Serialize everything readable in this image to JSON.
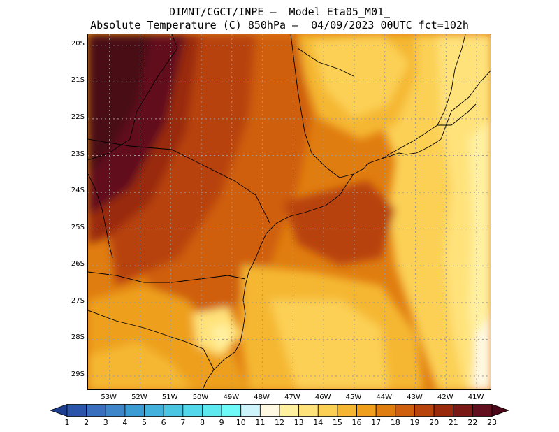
{
  "header": {
    "line1": "DIMNT/CGCT/INPE –  Model Eta05_M01_",
    "line2": "Absolute Temperature (C) 850hPa –  04/09/2023 00UTC fct=102h"
  },
  "map": {
    "lat_labels": [
      "20S",
      "21S",
      "22S",
      "23S",
      "24S",
      "25S",
      "26S",
      "27S",
      "28S",
      "29S"
    ],
    "lon_labels": [
      "53W",
      "52W",
      "51W",
      "50W",
      "49W",
      "48W",
      "47W",
      "46W",
      "45W",
      "44W",
      "43W",
      "42W",
      "41W"
    ],
    "extent": {
      "lon_min": -53.7,
      "lon_max": -40.5,
      "lat_max": -19.7,
      "lat_min": -29.4
    }
  },
  "colorbar": {
    "labels": [
      "1",
      "2",
      "3",
      "4",
      "5",
      "6",
      "7",
      "8",
      "9",
      "10",
      "11",
      "12",
      "13",
      "14",
      "15",
      "16",
      "17",
      "18",
      "19",
      "20",
      "21",
      "22",
      "23"
    ],
    "colors": [
      "#1f3f8f",
      "#2a55a8",
      "#3a6fbe",
      "#3f86c8",
      "#3d9bd3",
      "#42b1dc",
      "#4ac6e3",
      "#52d8ea",
      "#5ee9f0",
      "#6efaf8",
      "#cdf4fb",
      "#fff8e3",
      "#fff0a0",
      "#ffe27a",
      "#fbd054",
      "#f5b733",
      "#eea01c",
      "#e07d10",
      "#cf5f0c",
      "#b8430c",
      "#9a2a0c",
      "#7a1a14",
      "#62101f",
      "#4a0818"
    ]
  }
}
